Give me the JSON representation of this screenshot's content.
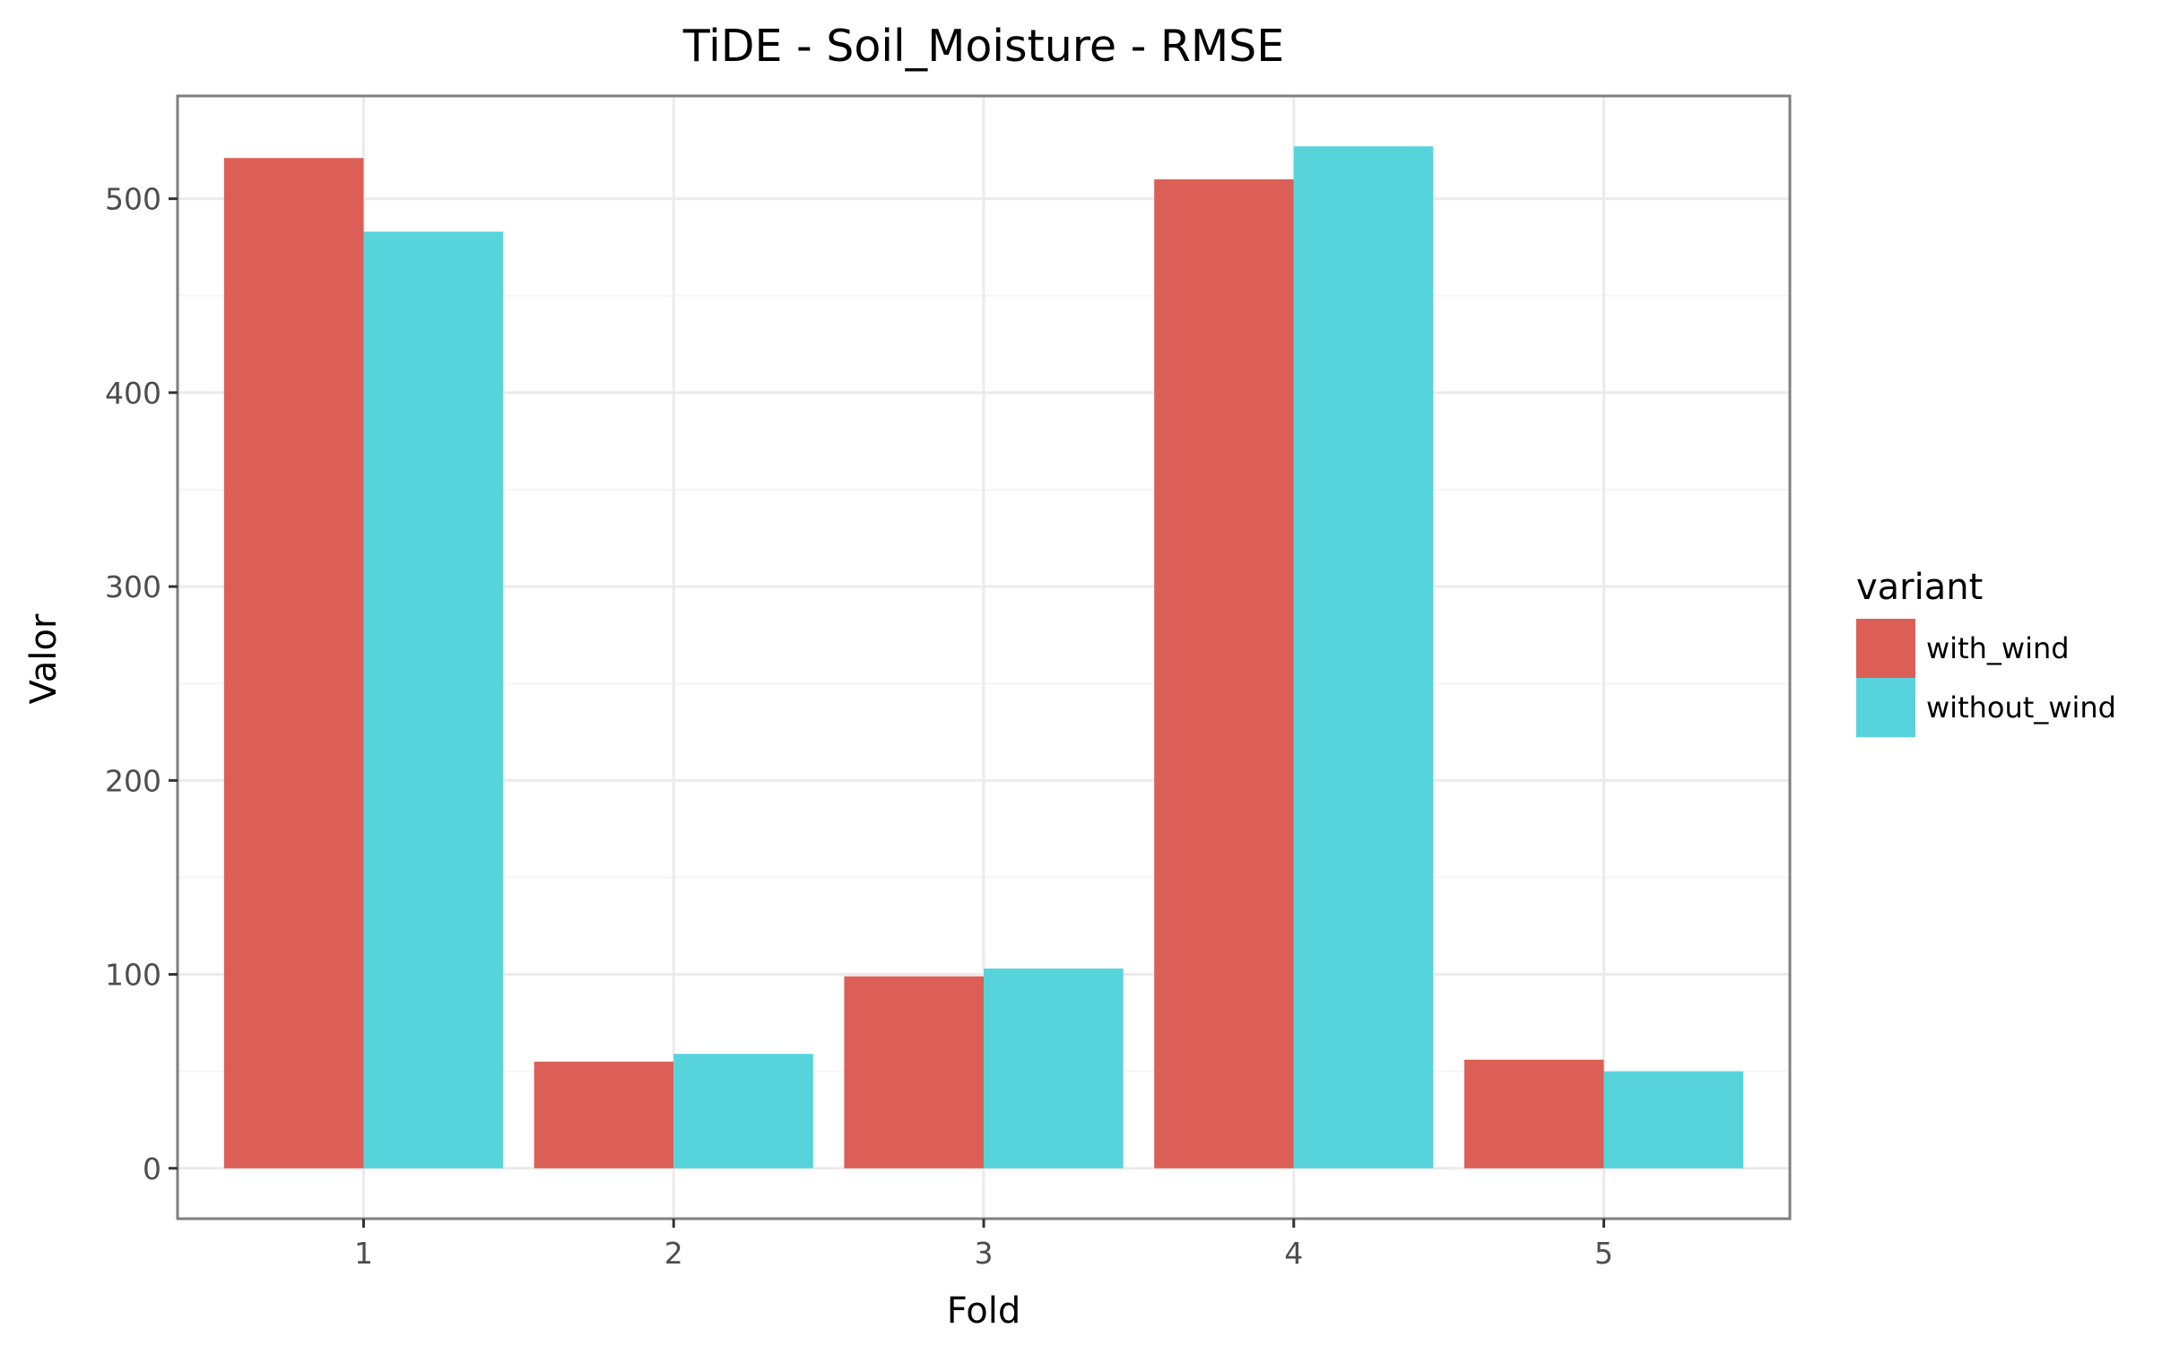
{
  "chart_data": {
    "type": "bar",
    "title": "TiDE - Soil_Moisture - RMSE",
    "xlabel": "Fold",
    "ylabel": "Valor",
    "categories": [
      "1",
      "2",
      "3",
      "4",
      "5"
    ],
    "series": [
      {
        "name": "with_wind",
        "color": "#db5f57",
        "values": [
          521,
          55,
          99,
          510,
          56
        ]
      },
      {
        "name": "without_wind",
        "color": "#57d3db",
        "values": [
          483,
          59,
          103,
          527,
          50
        ]
      }
    ],
    "ylim": [
      -26,
      553
    ],
    "yticks": [
      0,
      100,
      200,
      300,
      400,
      500
    ],
    "grid": true,
    "legend": {
      "title": "variant",
      "position": "right"
    },
    "colors": {
      "panel_border": "#7f7f7f",
      "grid_major": "#ebebeb",
      "grid_minor": "#f5f5f5"
    }
  }
}
